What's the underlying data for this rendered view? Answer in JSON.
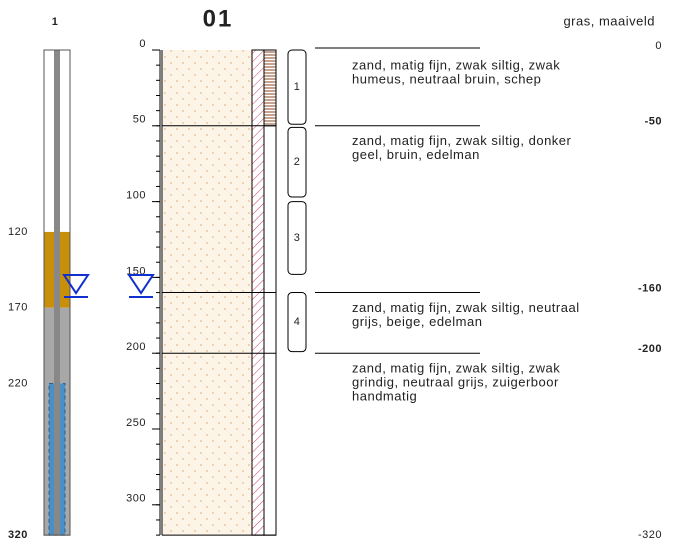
{
  "well": {
    "label": "1",
    "depth_labels": [
      120,
      170,
      220,
      320
    ]
  },
  "column": {
    "title": "01",
    "surface": "gras, maaiveld",
    "end_label": "-320",
    "end_depth": 320,
    "ticks": [
      0,
      50,
      100,
      150,
      200,
      250,
      300
    ],
    "samples": [
      {
        "label": "1",
        "top": 0,
        "bottom": 49
      },
      {
        "label": "2",
        "top": 51,
        "bottom": 97
      },
      {
        "label": "3",
        "top": 100,
        "bottom": 148
      },
      {
        "label": "4",
        "top": 160,
        "bottom": 199
      }
    ],
    "water_level": 157,
    "layers": [
      {
        "top": 0,
        "label": "0",
        "description": [
          "zand, matig fijn, zwak siltig, zwak",
          "humeus, neutraal bruin, schep"
        ]
      },
      {
        "top": 50,
        "label": "-50",
        "description": [
          "zand, matig fijn, zwak siltig, donker",
          "geel, bruin, edelman"
        ]
      },
      {
        "top": 160,
        "label": "-160",
        "description": [
          "zand, matig fijn, zwak siltig, neutraal",
          "grijs, beige, edelman"
        ]
      },
      {
        "top": 200,
        "label": "-200",
        "description": [
          "zand, matig fijn, zwak siltig, zwak",
          "grindig, neutraal grijs, zuigerboor",
          "handmatig"
        ]
      }
    ]
  }
}
